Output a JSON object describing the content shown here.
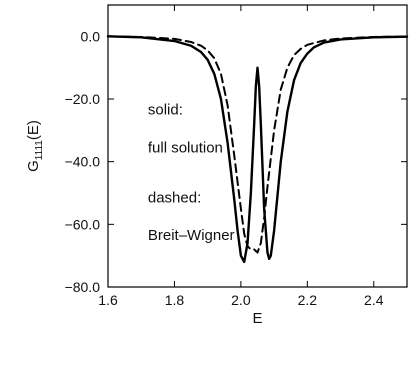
{
  "chart_data": {
    "type": "line",
    "xlabel": "E",
    "ylabel": {
      "main": "G",
      "sub": "1111",
      "suffix": "(E)"
    },
    "xlim": [
      1.6,
      2.5
    ],
    "ylim": [
      -80,
      10
    ],
    "xticks": [
      1.6,
      1.8,
      2.0,
      2.2,
      2.4
    ],
    "xtick_labels": [
      "1.6",
      "1.8",
      "2.0",
      "2.2",
      "2.4"
    ],
    "yticks": [
      0,
      -20,
      -40,
      -60,
      -80
    ],
    "ytick_labels": [
      "0.0",
      "−20.0",
      "−40.0",
      "−60.0",
      "−80.0"
    ],
    "grid": false,
    "annotations": [
      {
        "text": "solid:",
        "x": 1.72,
        "y": -25
      },
      {
        "text": "full solution",
        "x": 1.72,
        "y": -37
      },
      {
        "text": "dashed:",
        "x": 1.72,
        "y": -53
      },
      {
        "text": "Breit–Wigner",
        "x": 1.72,
        "y": -65
      }
    ],
    "series": [
      {
        "style": "solid",
        "color": "#000000",
        "x": [
          1.6,
          1.7,
          1.8,
          1.85,
          1.88,
          1.9,
          1.92,
          1.94,
          1.96,
          1.98,
          1.99,
          2.0,
          2.01,
          2.02,
          2.03,
          2.04,
          2.045,
          2.05,
          2.055,
          2.06,
          2.07,
          2.08,
          2.085,
          2.09,
          2.1,
          2.12,
          2.14,
          2.16,
          2.18,
          2.2,
          2.22,
          2.25,
          2.3,
          2.4,
          2.5
        ],
        "y": [
          0,
          -0.3,
          -1.5,
          -3,
          -5,
          -7.5,
          -12,
          -20,
          -34,
          -52,
          -62,
          -70,
          -72,
          -66,
          -50,
          -28,
          -16,
          -10,
          -16,
          -28,
          -55,
          -69,
          -71,
          -70,
          -62,
          -40,
          -24,
          -14,
          -8.5,
          -5.5,
          -3.5,
          -2,
          -1,
          -0.3,
          -0.1
        ]
      },
      {
        "style": "dashed",
        "color": "#000000",
        "x": [
          1.6,
          1.7,
          1.8,
          1.85,
          1.88,
          1.9,
          1.92,
          1.94,
          1.96,
          1.98,
          2.0,
          2.01,
          2.02,
          2.03,
          2.04,
          2.05,
          2.06,
          2.07,
          2.08,
          2.1,
          2.12,
          2.14,
          2.16,
          2.18,
          2.2,
          2.25,
          2.3,
          2.4,
          2.5
        ],
        "y": [
          0,
          -0.2,
          -0.8,
          -1.8,
          -3,
          -4.5,
          -7,
          -12,
          -22,
          -38,
          -55,
          -63,
          -67,
          -68,
          -68,
          -69,
          -66,
          -58,
          -48,
          -30,
          -17,
          -10,
          -6,
          -4,
          -2.7,
          -1.3,
          -0.7,
          -0.2,
          -0.1
        ]
      }
    ]
  }
}
